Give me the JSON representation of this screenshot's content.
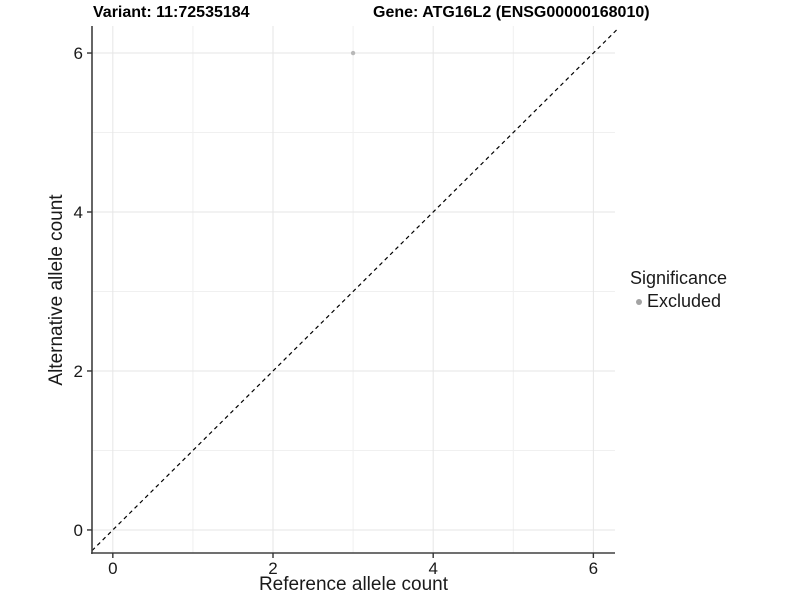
{
  "titles": {
    "left": "Variant: 11:72535184",
    "right": "Gene: ATG16L2 (ENSG00000168010)"
  },
  "legend": {
    "title": "Significance",
    "items": [
      {
        "label": "Excluded",
        "color": "#a3a3a3"
      }
    ]
  },
  "chart_data": {
    "type": "scatter",
    "title": "Variant: 11:72535184  /  Gene: ATG16L2 (ENSG00000168010)",
    "xlabel": "Reference allele count",
    "ylabel": "Alternative allele count",
    "xlim": [
      -0.26,
      6.27
    ],
    "ylim": [
      -0.29,
      6.34
    ],
    "xticks": [
      0,
      2,
      4,
      6
    ],
    "yticks": [
      0,
      2,
      4,
      6
    ],
    "grid_x_major": [
      0,
      2,
      4,
      6
    ],
    "grid_x_minor": [
      1,
      3,
      5
    ],
    "grid_y_major": [
      0,
      2,
      4,
      6
    ],
    "grid_y_minor": [
      1,
      3,
      5
    ],
    "grid": true,
    "legend_position": "right",
    "series": [
      {
        "name": "Excluded",
        "color": "#b8b8b8",
        "points": [
          {
            "x": 3,
            "y": 6
          }
        ]
      }
    ],
    "reference_line": {
      "type": "identity",
      "slope": 1,
      "intercept": 0,
      "style": "dashed",
      "color": "#000000",
      "from": -0.26,
      "to": 6.31
    },
    "colors": {
      "grid_major": "#e6e6e6",
      "grid_minor": "#f0f0f0",
      "axis_line": "#404040",
      "tick": "#333333",
      "text": "#1a1a1a",
      "background": "#ffffff"
    }
  }
}
